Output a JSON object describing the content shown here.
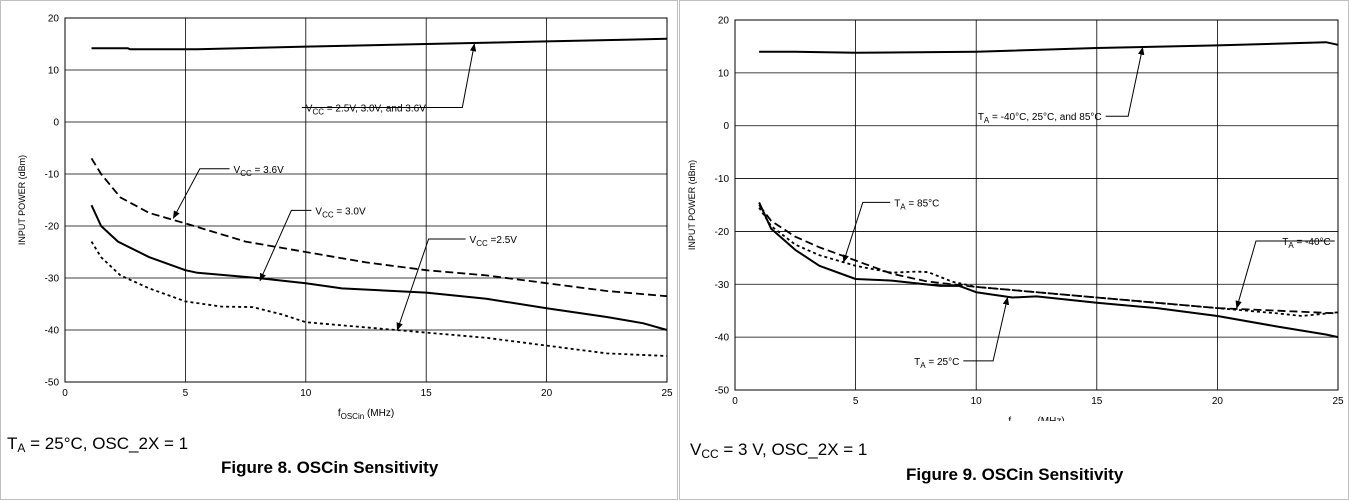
{
  "figures": [
    {
      "condition_main": "T",
      "condition_sub": "A",
      "condition_rest": " = 25°C, OSC_2X = 1",
      "caption": "Figure 8. OSCin Sensitivity"
    },
    {
      "condition_main": "V",
      "condition_sub": "CC",
      "condition_rest": " = 3 V, OSC_2X = 1",
      "caption": "Figure 9. OSCin Sensitivity"
    }
  ],
  "chart_data": [
    {
      "type": "line",
      "xlabel_main": "f",
      "xlabel_sub": "OSCin",
      "xlabel_unit": " (MHz)",
      "ylabel": "INPUT POWER (dBm)",
      "xlim": [
        0,
        25
      ],
      "ylim": [
        -50,
        20
      ],
      "xticks": [
        0,
        5,
        10,
        15,
        20,
        25
      ],
      "yticks": [
        -50,
        -40,
        -30,
        -20,
        -10,
        0,
        10,
        20
      ],
      "grid": true,
      "series": [
        {
          "style": "solid",
          "x": [
            1.1,
            2.6,
            2.7,
            5.5,
            10,
            15,
            20,
            25
          ],
          "y": [
            14.2,
            14.2,
            14.0,
            14.0,
            14.5,
            15.0,
            15.5,
            16.0
          ]
        },
        {
          "style": "dashed",
          "x": [
            1.1,
            1.5,
            2.3,
            3.5,
            5.0,
            7.5,
            10,
            12.5,
            15,
            17.5,
            20,
            22.5,
            25
          ],
          "y": [
            -7.0,
            -10.0,
            -14.5,
            -17.5,
            -19.5,
            -23.0,
            -25.0,
            -27.0,
            -28.5,
            -29.5,
            -31.0,
            -32.5,
            -33.5
          ]
        },
        {
          "style": "solid",
          "x": [
            1.1,
            1.5,
            2.2,
            3.5,
            5.0,
            5.5,
            8,
            10,
            11.5,
            15,
            17.5,
            20,
            22.5,
            24,
            25
          ],
          "y": [
            -16.0,
            -20.0,
            -23.0,
            -26.0,
            -28.5,
            -29.0,
            -30.0,
            -31.0,
            -32.0,
            -32.8,
            -34.0,
            -35.8,
            -37.5,
            -38.7,
            -40.0
          ]
        },
        {
          "style": "dotted",
          "x": [
            1.1,
            1.5,
            2.3,
            3.5,
            5.0,
            6.5,
            7.8,
            9,
            10,
            12.5,
            15,
            17.5,
            20,
            22.5,
            25
          ],
          "y": [
            -23.0,
            -26.0,
            -29.5,
            -32.0,
            -34.5,
            -35.5,
            -35.6,
            -37.0,
            -38.5,
            -39.5,
            -40.5,
            -41.5,
            -43.0,
            -44.5,
            -45.0
          ]
        }
      ],
      "annotations": [
        {
          "label_main": "V",
          "label_sub": "CC",
          "label_rest": " = 2.5V, 3.0V, and 3.6V",
          "arrow_to": [
            17.0,
            15.0
          ],
          "text_at": [
            10.0,
            2.8
          ],
          "elbow": [
            16.5,
            2.8
          ]
        },
        {
          "label_main": "V",
          "label_sub": "CC",
          "label_rest": " = 3.6V",
          "arrow_to": [
            4.5,
            -18.5
          ],
          "text_at": [
            7.0,
            -9.0
          ],
          "elbow": [
            5.6,
            -9.0
          ]
        },
        {
          "label_main": "V",
          "label_sub": "CC",
          "label_rest": " = 3.0V",
          "arrow_to": [
            8.1,
            -30.5
          ],
          "text_at": [
            10.4,
            -17.0
          ],
          "elbow": [
            9.4,
            -17.0
          ]
        },
        {
          "label_main": "V",
          "label_sub": "CC",
          "label_rest": " =2.5V",
          "arrow_to": [
            13.8,
            -40.0
          ],
          "text_at": [
            16.8,
            -22.5
          ],
          "elbow": [
            15.1,
            -22.5
          ]
        }
      ]
    },
    {
      "type": "line",
      "xlabel_main": "f",
      "xlabel_sub": "OSCin",
      "xlabel_unit": " (MHz)",
      "ylabel": "INPUT POWER (dBm)",
      "xlim": [
        0,
        25
      ],
      "ylim": [
        -50,
        20
      ],
      "xticks": [
        0,
        5,
        10,
        15,
        20,
        25
      ],
      "yticks": [
        -50,
        -40,
        -30,
        -20,
        -10,
        0,
        10,
        20
      ],
      "grid": true,
      "series": [
        {
          "style": "solid",
          "x": [
            1.0,
            2.5,
            5.0,
            10,
            15,
            20,
            24.5,
            25
          ],
          "y": [
            14.0,
            14.0,
            13.8,
            14.0,
            14.7,
            15.2,
            15.8,
            15.3
          ]
        },
        {
          "style": "dashed",
          "x": [
            1.0,
            1.5,
            2.5,
            3.5,
            5.0,
            6.5,
            7.0,
            8.0,
            9.0,
            10,
            12.5,
            15,
            17.5,
            20,
            22.5,
            25
          ],
          "y": [
            -15.0,
            -18.0,
            -21.0,
            -23.0,
            -25.5,
            -28.0,
            -28.5,
            -29.5,
            -30.0,
            -30.5,
            -31.5,
            -32.5,
            -33.5,
            -34.5,
            -35.0,
            -35.5
          ]
        },
        {
          "style": "dotted",
          "x": [
            1.0,
            1.5,
            2.5,
            3.5,
            5.0,
            6.5,
            7.5,
            8.0,
            9.0,
            10,
            12.5,
            15,
            17.5,
            20,
            22.5,
            23.5,
            25
          ],
          "y": [
            -15.5,
            -19.0,
            -22.5,
            -24.5,
            -26.5,
            -27.8,
            -27.6,
            -27.7,
            -29.5,
            -30.5,
            -31.5,
            -32.5,
            -33.5,
            -34.5,
            -35.5,
            -36.0,
            -35.3
          ]
        },
        {
          "style": "solid",
          "x": [
            1.0,
            1.5,
            2.5,
            3.5,
            5.0,
            6.5,
            7.5,
            8.5,
            9.3,
            10,
            11.5,
            12.5,
            15,
            17.5,
            20,
            22.5,
            24.5,
            25
          ],
          "y": [
            -14.5,
            -19.5,
            -23.5,
            -26.5,
            -29.0,
            -29.3,
            -29.8,
            -30.3,
            -30.3,
            -31.5,
            -32.5,
            -32.3,
            -33.5,
            -34.5,
            -36.0,
            -38.0,
            -39.5,
            -40.0
          ]
        }
      ],
      "annotations": [
        {
          "label_main": "T",
          "label_sub": "A",
          "label_rest": " = -40°C,  25°C, and 85°C",
          "arrow_to": [
            16.9,
            14.8
          ],
          "text_at": [
            15.2,
            1.8
          ],
          "elbow": [
            16.3,
            1.8
          ],
          "text_anchor": "end"
        },
        {
          "label_main": "T",
          "label_sub": "A",
          "label_rest": " = 85°C",
          "arrow_to": [
            4.5,
            -25.8
          ],
          "text_at": [
            6.6,
            -14.5
          ],
          "elbow": [
            5.3,
            -14.5
          ]
        },
        {
          "label_main": "T",
          "label_sub": "A",
          "label_rest": " = -40°C",
          "arrow_to": [
            20.8,
            -34.5
          ],
          "text_at": [
            24.7,
            -21.8
          ],
          "elbow": [
            21.6,
            -21.8
          ],
          "text_anchor": "end"
        },
        {
          "label_main": "T",
          "label_sub": "A",
          "label_rest": " = 25°C",
          "arrow_to": [
            11.3,
            -32.5
          ],
          "text_at": [
            9.3,
            -44.5
          ],
          "elbow": [
            10.7,
            -44.5
          ],
          "text_anchor": "end"
        }
      ]
    }
  ]
}
